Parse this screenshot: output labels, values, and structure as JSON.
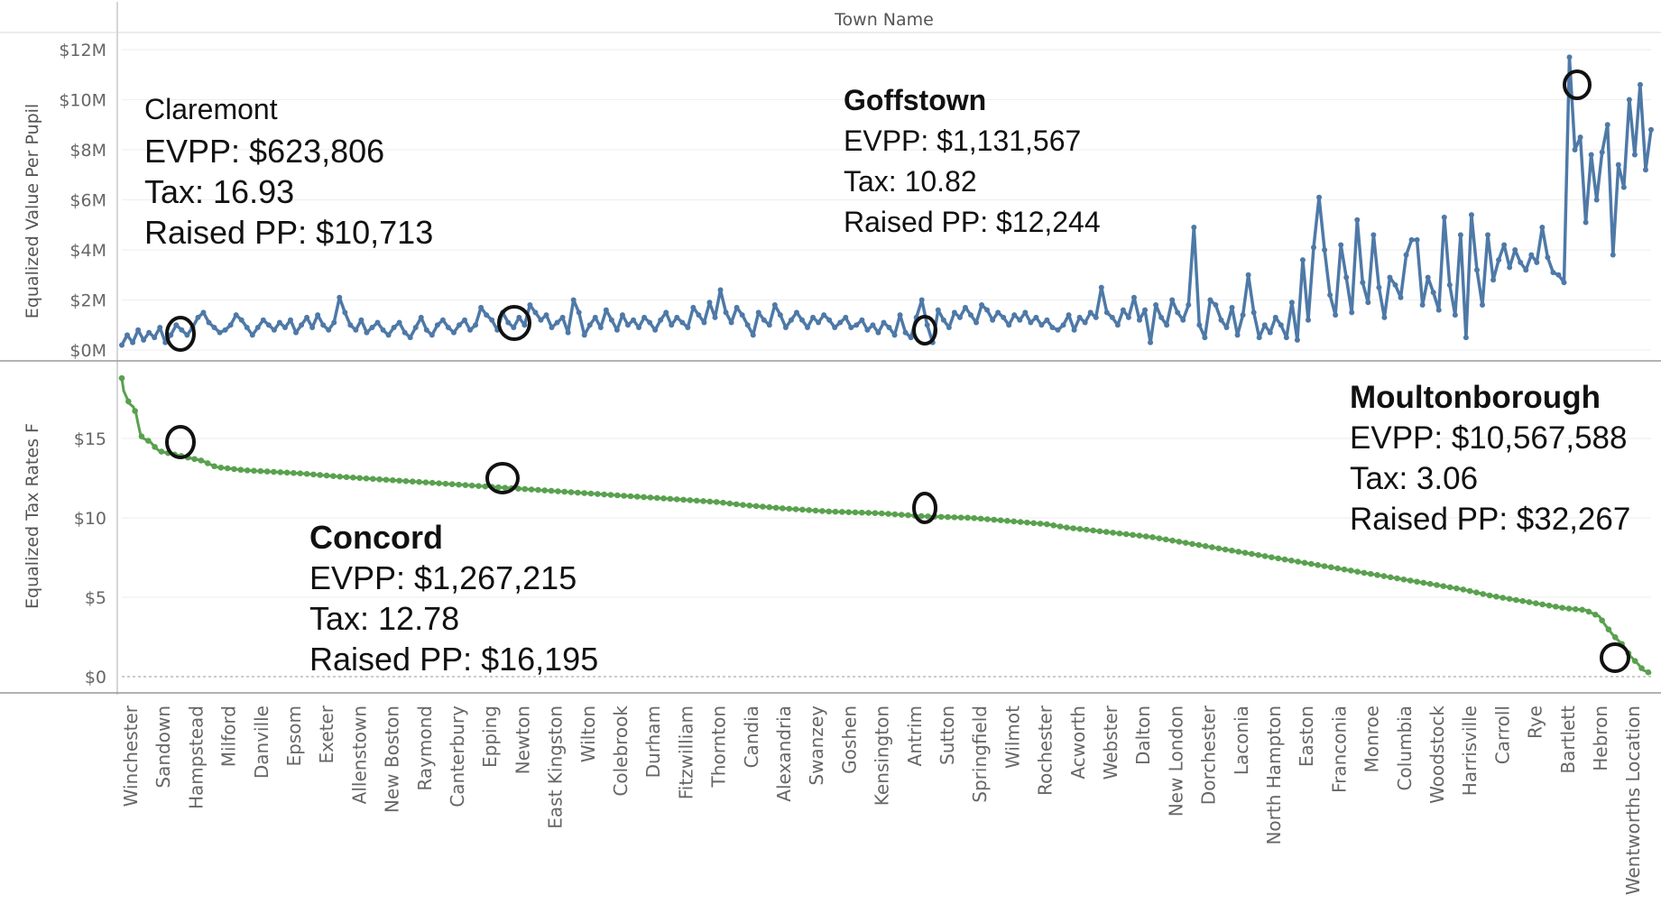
{
  "colors": {
    "top_series": "#4e79a7",
    "bottom_series": "#59a14f",
    "marker": "#000000"
  },
  "chart_data": [
    {
      "type": "line",
      "title": "Town Name",
      "xlabel": "",
      "ylabel": "Equalized Value Per Pupil",
      "ylim": [
        0,
        12000000
      ],
      "y_ticks": [
        "$12M",
        "$10M",
        "$8M",
        "$6M",
        "$4M",
        "$2M",
        "$0M"
      ],
      "series": [
        {
          "values": [
            0.2,
            0.6,
            0.3,
            0.8,
            0.4,
            0.7,
            0.5,
            0.9,
            0.3,
            0.6,
            1.0,
            0.8,
            0.6,
            0.9,
            1.3,
            1.5,
            1.1,
            0.9,
            0.7,
            0.8,
            1.0,
            1.4,
            1.2,
            0.9,
            0.6,
            0.9,
            1.2,
            1.0,
            0.8,
            1.1,
            0.9,
            1.2,
            0.7,
            1.0,
            1.3,
            0.9,
            1.4,
            1.0,
            0.8,
            1.1,
            2.1,
            1.5,
            1.0,
            0.8,
            1.2,
            0.7,
            0.9,
            1.1,
            0.8,
            0.6,
            0.9,
            1.1,
            0.7,
            0.5,
            0.9,
            1.3,
            0.8,
            0.6,
            1.0,
            1.2,
            0.9,
            0.7,
            1.0,
            1.2,
            0.8,
            1.0,
            1.7,
            1.4,
            1.2,
            0.8,
            1.5,
            1.1,
            0.9,
            1.3,
            1.0,
            1.8,
            1.5,
            1.2,
            1.4,
            0.9,
            1.1,
            1.3,
            0.7,
            2.0,
            1.5,
            0.6,
            1.0,
            1.3,
            0.9,
            1.6,
            1.2,
            0.8,
            1.4,
            1.0,
            1.2,
            0.9,
            1.3,
            1.1,
            0.8,
            1.2,
            1.5,
            1.0,
            1.3,
            1.1,
            0.9,
            1.7,
            1.4,
            1.1,
            1.9,
            1.3,
            2.4,
            1.5,
            1.1,
            1.7,
            1.4,
            1.0,
            0.6,
            1.5,
            1.2,
            1.0,
            1.8,
            1.4,
            0.9,
            1.2,
            1.5,
            1.2,
            0.9,
            1.3,
            1.1,
            1.4,
            1.2,
            0.9,
            1.1,
            1.3,
            0.9,
            1.0,
            1.2,
            0.8,
            1.0,
            0.7,
            1.1,
            0.9,
            0.6,
            1.4,
            0.7,
            0.5,
            1.3,
            2.0,
            1.0,
            0.3,
            1.6,
            1.2,
            0.9,
            1.5,
            1.3,
            1.7,
            1.4,
            1.1,
            1.8,
            1.6,
            1.2,
            1.5,
            1.3,
            1.0,
            1.4,
            1.2,
            1.5,
            1.1,
            1.3,
            1.0,
            1.2,
            0.9,
            0.8,
            1.0,
            1.4,
            0.8,
            1.3,
            1.1,
            1.5,
            1.3,
            2.5,
            1.5,
            1.3,
            1.0,
            1.6,
            1.3,
            2.1,
            1.2,
            1.6,
            0.3,
            1.8,
            1.3,
            1.0,
            2.0,
            1.5,
            1.2,
            1.8,
            4.9,
            1.0,
            0.5,
            2.0,
            1.8,
            1.2,
            0.9,
            1.7,
            0.6,
            1.4,
            3.0,
            1.5,
            0.5,
            1.0,
            0.7,
            1.3,
            1.0,
            0.5,
            1.9,
            0.4,
            3.6,
            1.2,
            4.1,
            6.1,
            4.0,
            2.2,
            1.4,
            4.2,
            2.9,
            1.5,
            5.2,
            2.7,
            1.9,
            4.6,
            2.5,
            1.3,
            2.9,
            2.6,
            2.1,
            3.8,
            4.4,
            4.4,
            1.8,
            2.9,
            2.3,
            1.6,
            5.3,
            2.6,
            1.4,
            4.6,
            0.5,
            5.4,
            3.2,
            1.8,
            4.6,
            2.8,
            3.6,
            4.2,
            3.3,
            4.0,
            3.5,
            3.2,
            3.8,
            3.5,
            4.9,
            3.7,
            3.1,
            3.0,
            2.7,
            11.7,
            8.0,
            8.5,
            5.1,
            7.8,
            6.0,
            7.9,
            9.0,
            3.8,
            7.4,
            6.5,
            10.0,
            7.8,
            10.6,
            7.2,
            8.8
          ]
        }
      ]
    },
    {
      "type": "line",
      "ylabel": "Equalized Tax Rates F",
      "ylim": [
        0,
        19
      ],
      "y_ticks": [
        "$15",
        "$10",
        "$5",
        "$0"
      ],
      "x_labels": [
        "Winchester",
        "Sandown",
        "Hampstead",
        "Milford",
        "Danville",
        "Epsom",
        "Exeter",
        "Allenstown",
        "New Boston",
        "Raymond",
        "Canterbury",
        "Epping",
        "Newton",
        "East Kingston",
        "Wilton",
        "Colebrook",
        "Durham",
        "Fitzwilliam",
        "Thornton",
        "Candia",
        "Alexandria",
        "Swanzey",
        "Goshen",
        "Kensington",
        "Antrim",
        "Sutton",
        "Springfield",
        "Wilmot",
        "Rochester",
        "Acworth",
        "Webster",
        "Dalton",
        "New London",
        "Dorchester",
        "Laconia",
        "North Hampton",
        "Easton",
        "Franconia",
        "Monroe",
        "Columbia",
        "Woodstock",
        "Harrisville",
        "Carroll",
        "Rye",
        "Bartlett",
        "Hebron",
        "Wentworths Location"
      ],
      "series": [
        {
          "points": [
            [
              0,
              18.8
            ],
            [
              2,
              18.0
            ],
            [
              5,
              17.6
            ],
            [
              8,
              17.2
            ],
            [
              12,
              17.0
            ],
            [
              15,
              16.6
            ],
            [
              17,
              16.0
            ],
            [
              20,
              15.2
            ],
            [
              23,
              15.0
            ],
            [
              30,
              14.8
            ],
            [
              36,
              14.4
            ],
            [
              40,
              14.2
            ],
            [
              55,
              14.0
            ],
            [
              70,
              13.8
            ],
            [
              85,
              13.6
            ],
            [
              100,
              13.2
            ],
            [
              130,
              13.0
            ],
            [
              160,
              12.9
            ],
            [
              190,
              12.8
            ],
            [
              230,
              12.6
            ],
            [
              280,
              12.4
            ],
            [
              330,
              12.2
            ],
            [
              380,
              12.0
            ],
            [
              430,
              11.8
            ],
            [
              480,
              11.6
            ],
            [
              530,
              11.4
            ],
            [
              580,
              11.2
            ],
            [
              630,
              11.0
            ],
            [
              660,
              10.8
            ],
            [
              700,
              10.6
            ],
            [
              750,
              10.4
            ],
            [
              800,
              10.3
            ],
            [
              850,
              10.1
            ],
            [
              900,
              10.0
            ],
            [
              940,
              9.8
            ],
            [
              980,
              9.6
            ],
            [
              1000,
              9.4
            ],
            [
              1030,
              9.2
            ],
            [
              1060,
              9.0
            ],
            [
              1090,
              8.8
            ],
            [
              1120,
              8.5
            ],
            [
              1150,
              8.2
            ],
            [
              1180,
              7.9
            ],
            [
              1210,
              7.6
            ],
            [
              1240,
              7.3
            ],
            [
              1270,
              7.0
            ],
            [
              1300,
              6.7
            ],
            [
              1330,
              6.4
            ],
            [
              1360,
              6.1
            ],
            [
              1390,
              5.8
            ],
            [
              1420,
              5.5
            ],
            [
              1450,
              5.1
            ],
            [
              1480,
              4.8
            ],
            [
              1510,
              4.5
            ],
            [
              1530,
              4.3
            ],
            [
              1550,
              4.2
            ],
            [
              1565,
              3.8
            ],
            [
              1572,
              3.2
            ],
            [
              1580,
              2.6
            ],
            [
              1590,
              2.0
            ],
            [
              1598,
              1.3
            ],
            [
              1606,
              0.8
            ],
            [
              1612,
              0.4
            ],
            [
              1620,
              0.2
            ]
          ]
        }
      ]
    }
  ],
  "annotations": {
    "claremont": {
      "name": "Claremont",
      "evpp": "EVPP: $623,806",
      "tax": "Tax: 16.93",
      "raised": "Raised PP: $10,713"
    },
    "goffstown": {
      "name": "Goffstown",
      "evpp": "EVPP: $1,131,567",
      "tax": "Tax: 10.82",
      "raised": "Raised PP: $12,244"
    },
    "moultonborough": {
      "name": "Moultonborough",
      "evpp": "EVPP: $10,567,588",
      "tax": "Tax: 3.06",
      "raised": "Raised PP: $32,267"
    },
    "concord": {
      "name": "Concord",
      "evpp": "EVPP: $1,267,215",
      "tax": "Tax: 12.78",
      "raised": "Raised PP: $16,195"
    }
  }
}
